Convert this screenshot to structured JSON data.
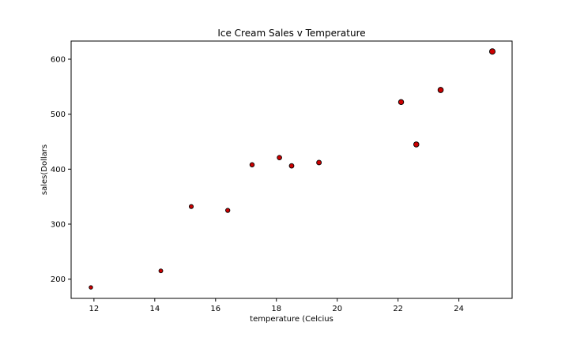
{
  "chart_data": {
    "type": "scatter",
    "title": "Ice Cream Sales v Temperature",
    "xlabel": "temperature (Celcius",
    "ylabel": "sales(Dollars",
    "xlim": [
      11.25,
      25.75
    ],
    "ylim": [
      165,
      633
    ],
    "xticks": [
      12,
      14,
      16,
      18,
      20,
      22,
      24
    ],
    "yticks": [
      200,
      300,
      400,
      500,
      600
    ],
    "grid": false,
    "marker_color": "#cc0000",
    "marker_edge": "#000000",
    "points": [
      {
        "x": 11.9,
        "y": 185
      },
      {
        "x": 14.2,
        "y": 215
      },
      {
        "x": 15.2,
        "y": 332
      },
      {
        "x": 16.4,
        "y": 325
      },
      {
        "x": 17.2,
        "y": 408
      },
      {
        "x": 18.1,
        "y": 421
      },
      {
        "x": 18.5,
        "y": 406
      },
      {
        "x": 19.4,
        "y": 412
      },
      {
        "x": 22.1,
        "y": 522
      },
      {
        "x": 22.6,
        "y": 445
      },
      {
        "x": 23.4,
        "y": 544
      },
      {
        "x": 25.1,
        "y": 614
      }
    ]
  }
}
